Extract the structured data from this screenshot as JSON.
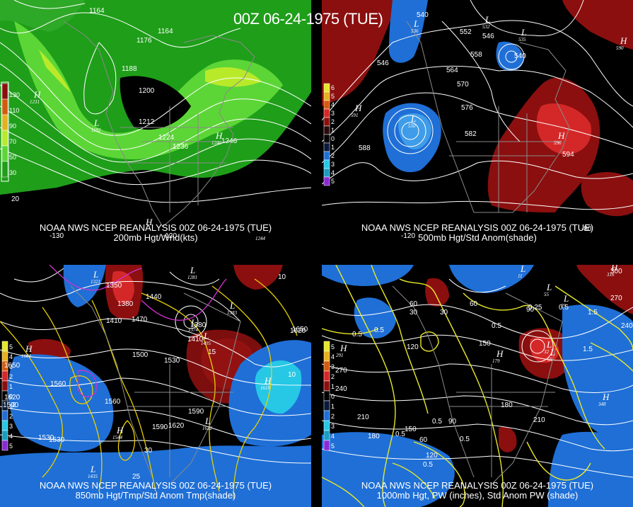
{
  "title": "00Z 06-24-1975 (TUE)",
  "colors": {
    "green_light": "#5cd636",
    "green_dark": "#1f9e1a",
    "yellow": "#e6e62a",
    "red_dark": "#8b0f0f",
    "red": "#d42828",
    "blue": "#1f6fd6",
    "cyan": "#27c7e6",
    "contour_white": "#ffffff",
    "contour_yellow": "#e8d000",
    "contour_magenta": "#d030d0",
    "map_gray": "#8a8a8a"
  },
  "panels": [
    {
      "id": "p200",
      "caption_line1": "NOAA NWS NCEP REANALYSIS 00Z 06-24-1975 (TUE)",
      "caption_line2": "200mb Hgt/Wnd(kts)",
      "legend": [
        "130",
        "110",
        "90",
        "70",
        "50",
        "30"
      ],
      "contour_labels": [
        "1164",
        "1164",
        "1176",
        "1188",
        "1200",
        "1212",
        "1224",
        "1236",
        "1246"
      ],
      "highs": [
        {
          "label": "H",
          "value": "1231"
        },
        {
          "label": "H",
          "value": "1246"
        },
        {
          "label": "H",
          "value": ""
        }
      ],
      "lows": [
        {
          "label": "L",
          "value": "1182"
        }
      ],
      "lon_labels": [
        "-130",
        "-120",
        "20"
      ],
      "extra_labels": [
        "1244"
      ]
    },
    {
      "id": "p500",
      "caption_line1": "NOAA NWS NCEP REANALYSIS 00Z 06-24-1975 (TUE)",
      "caption_line2": "500mb Hgt/Std Anom(shade)",
      "legend": [
        "6",
        "5",
        "4",
        "3",
        "2",
        "1",
        "0",
        "1",
        "2",
        "3",
        "4",
        "5"
      ],
      "contour_labels": [
        "540",
        "552",
        "546",
        "558",
        "540",
        "564",
        "570",
        "576",
        "582",
        "588",
        "594",
        "546"
      ],
      "highs": [
        {
          "label": "H",
          "value": "591"
        },
        {
          "label": "H",
          "value": "596"
        },
        {
          "label": "H",
          "value": "590"
        }
      ],
      "lows": [
        {
          "label": "L",
          "value": "536"
        },
        {
          "label": "L",
          "value": "532"
        },
        {
          "label": "L",
          "value": "535"
        },
        {
          "label": "L",
          "value": "550"
        }
      ],
      "lon_labels": [
        "-120",
        "-80"
      ]
    },
    {
      "id": "p850",
      "caption_line1": "NOAA NWS NCEP REANALYSIS 00Z 06-24-1975 (TUE)",
      "caption_line2": "850mb Hgt/Tmp/Std Anom Tmp(shade)",
      "legend": [
        "5",
        "4",
        "3",
        "2",
        "1",
        "0",
        "1",
        "2",
        "3",
        "4",
        "5"
      ],
      "contour_labels": [
        "1440",
        "1350",
        "1380",
        "1410",
        "1440",
        "1470",
        "1380",
        "1410",
        "1500",
        "1530",
        "1650",
        "1620",
        "1650",
        "1620",
        "1560",
        "1590",
        "1560",
        "1590",
        "1620",
        "1530",
        "1530",
        "1590"
      ],
      "temp_labels": [
        "10",
        "15",
        "10",
        "25",
        "30",
        "2"
      ],
      "highs": [
        {
          "label": "H",
          "value": "1664"
        },
        {
          "label": "H",
          "value": "1618"
        },
        {
          "label": "H",
          "value": "1544"
        }
      ],
      "lows": [
        {
          "label": "L",
          "value": "1321"
        },
        {
          "label": "L",
          "value": "1281"
        },
        {
          "label": "L",
          "value": "1383"
        },
        {
          "label": "L",
          "value": "1374"
        },
        {
          "label": "L",
          "value": "1495"
        },
        {
          "label": "L",
          "value": "1622"
        },
        {
          "label": "L",
          "value": "1435"
        }
      ]
    },
    {
      "id": "p1000",
      "caption_line1": "NOAA NWS NCEP REANALYSIS 00Z 06-24-1975 (TUE)",
      "caption_line2": "1000mb Hgt, PW (inches), Std Anom PW (shade)",
      "legend": [
        "5",
        "4",
        "3",
        "2",
        "1",
        "0",
        "1",
        "2",
        "3",
        "4",
        "5"
      ],
      "contour_labels": [
        "60",
        "30",
        "30",
        "60",
        "90",
        "300",
        "270",
        "240",
        "270",
        "240",
        "120",
        "150",
        "180",
        "210",
        "210",
        "180",
        "150",
        "120",
        "90",
        "60"
      ],
      "pw_labels": [
        "0.25",
        "0.5",
        "0.5",
        "0.5",
        "0.5",
        "1.5",
        "1.5",
        "0.5",
        "0.5",
        "0.5",
        "0.5"
      ],
      "highs": [
        {
          "label": "H",
          "value": "291"
        },
        {
          "label": "H",
          "value": "348"
        },
        {
          "label": "H",
          "value": "316"
        },
        {
          "label": "H",
          "value": "179"
        }
      ],
      "lows": [
        {
          "label": "L",
          "value": "11"
        },
        {
          "label": "L",
          "value": "32"
        },
        {
          "label": "L",
          "value": "55"
        },
        {
          "label": "L",
          "value": "29"
        },
        {
          "label": "L",
          "value": "55"
        }
      ]
    }
  ]
}
